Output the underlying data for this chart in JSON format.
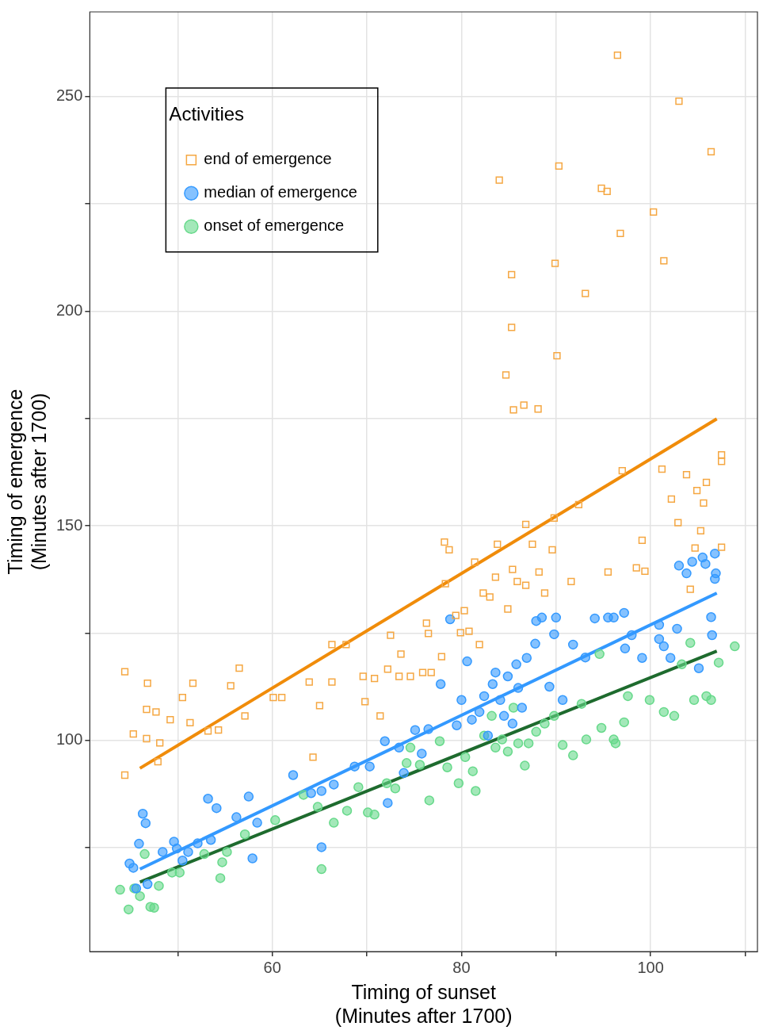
{
  "chart_data": {
    "type": "scatter",
    "xlabel": "Timing of sunset\n(Minutes after 1700)",
    "ylabel": "Timing of emergence\n(Minutes after 1700)",
    "legend_title": "Activities",
    "legend": "top left",
    "grid": true,
    "xlim": [
      40.7,
      111.3
    ],
    "xticks": [
      {
        "value": 50,
        "label": null
      },
      60,
      {
        "value": 70,
        "label": null
      },
      80,
      {
        "value": 90,
        "label": null
      },
      100,
      {
        "value": 110,
        "label": null
      }
    ],
    "ylim": [
      50.8,
      269.7
    ],
    "yticks": [
      {
        "value": 75,
        "label": null
      },
      100,
      {
        "value": 125,
        "label": null
      },
      150,
      {
        "value": 175,
        "label": null
      },
      200,
      {
        "value": 225,
        "label": null
      },
      250
    ],
    "series": [
      {
        "type": "scatter",
        "name": "end of emergence",
        "color": "#f5a742",
        "marker": "square",
        "x": [
          44.4,
          44.4,
          45.3,
          46.8,
          46.7,
          46.7,
          47.7,
          47.9,
          48.1,
          49.2,
          50.5,
          51.3,
          51.6,
          53.2,
          54.3,
          55.6,
          56.5,
          57.1,
          60.1,
          61.0,
          63.9,
          64.3,
          65.0,
          66.3,
          66.3,
          67.8,
          69.8,
          69.6,
          70.8,
          71.4,
          72.2,
          72.5,
          73.4,
          73.6,
          74.6,
          75.9,
          76.3,
          76.5,
          76.8,
          77.9,
          78.2,
          78.3,
          78.7,
          79.4,
          79.9,
          80.3,
          80.8,
          81.4,
          81.9,
          82.3,
          83.0,
          83.6,
          83.8,
          84.0,
          84.7,
          84.9,
          85.3,
          85.3,
          85.4,
          85.5,
          85.9,
          86.6,
          86.8,
          86.8,
          87.5,
          88.1,
          88.2,
          88.8,
          89.6,
          89.9,
          90.1,
          90.3,
          89.8,
          91.6,
          92.4,
          93.1,
          94.8,
          95.4,
          95.5,
          96.5,
          96.8,
          97.0,
          98.5,
          99.1,
          99.4,
          100.3,
          101.2,
          101.4,
          102.2,
          102.9,
          103.0,
          103.8,
          104.2,
          104.7,
          104.9,
          105.3,
          105.6,
          105.9,
          106.4,
          107.5,
          107.5,
          107.5
        ],
        "values": [
          116.0,
          91.9,
          101.5,
          113.3,
          107.2,
          100.4,
          106.6,
          95.0,
          99.4,
          104.8,
          110.0,
          104.1,
          113.3,
          102.2,
          102.4,
          112.7,
          116.8,
          105.7,
          110.0,
          110.0,
          113.6,
          96.1,
          108.1,
          113.6,
          122.3,
          122.3,
          109.0,
          114.9,
          114.4,
          105.7,
          116.6,
          124.5,
          114.9,
          120.1,
          114.9,
          115.8,
          127.3,
          124.9,
          115.8,
          119.5,
          146.2,
          136.5,
          144.4,
          129.1,
          125.1,
          130.2,
          125.4,
          141.5,
          122.3,
          134.3,
          133.4,
          138.0,
          145.7,
          230.5,
          185.1,
          130.6,
          208.5,
          196.2,
          139.8,
          177.0,
          137.0,
          178.1,
          150.3,
          136.1,
          145.7,
          177.2,
          139.2,
          134.3,
          144.4,
          211.1,
          189.6,
          233.8,
          151.8,
          137.0,
          154.9,
          204.1,
          228.6,
          227.9,
          139.2,
          259.6,
          218.1,
          162.8,
          140.2,
          146.6,
          139.4,
          223.1,
          163.2,
          211.7,
          156.2,
          150.7,
          248.9,
          161.9,
          135.2,
          144.8,
          158.2,
          148.8,
          155.3,
          160.1,
          237.1,
          145.0,
          165.0,
          166.5
        ]
      },
      {
        "type": "scatter",
        "name": "median of emergence",
        "color": "#3399ff",
        "marker": "circle",
        "x": [
          44.9,
          45.3,
          45.6,
          46.3,
          46.6,
          46.8,
          45.9,
          48.4,
          49.6,
          49.9,
          50.5,
          51.1,
          52.1,
          53.2,
          53.5,
          54.1,
          56.2,
          57.5,
          57.9,
          58.4,
          62.2,
          64.1,
          65.2,
          65.2,
          66.5,
          68.7,
          70.3,
          72.2,
          71.9,
          73.4,
          73.9,
          75.1,
          75.8,
          76.5,
          77.8,
          78.8,
          79.5,
          80.0,
          80.6,
          81.1,
          81.9,
          82.4,
          82.8,
          83.3,
          83.6,
          84.1,
          84.5,
          84.9,
          85.4,
          85.8,
          86.0,
          86.4,
          86.9,
          87.8,
          87.9,
          88.5,
          89.3,
          89.8,
          90.0,
          90.7,
          91.8,
          93.1,
          94.1,
          95.5,
          96.1,
          97.2,
          97.3,
          98.0,
          99.1,
          100.9,
          100.9,
          101.4,
          102.1,
          102.8,
          103.0,
          103.8,
          104.4,
          105.1,
          105.5,
          105.8,
          106.4,
          106.5,
          106.8,
          106.8,
          106.9
        ],
        "values": [
          71.3,
          70.3,
          65.5,
          82.9,
          80.7,
          66.5,
          75.9,
          74.0,
          76.4,
          74.8,
          72.0,
          74.0,
          76.0,
          86.4,
          76.8,
          84.2,
          82.1,
          86.9,
          72.5,
          80.8,
          91.9,
          87.7,
          75.1,
          88.2,
          89.7,
          93.9,
          93.9,
          85.4,
          99.8,
          98.3,
          92.4,
          102.4,
          96.9,
          102.6,
          113.1,
          128.2,
          103.5,
          109.4,
          118.4,
          104.8,
          106.6,
          110.3,
          101.1,
          113.1,
          115.8,
          109.4,
          105.7,
          114.9,
          103.9,
          117.7,
          112.2,
          107.6,
          119.2,
          122.5,
          127.8,
          128.6,
          112.5,
          124.7,
          128.6,
          109.4,
          122.3,
          119.3,
          128.4,
          128.6,
          128.6,
          129.7,
          121.4,
          124.5,
          119.2,
          126.9,
          123.6,
          121.9,
          119.2,
          126.0,
          140.7,
          138.9,
          141.6,
          116.8,
          142.6,
          141.1,
          128.7,
          124.5,
          143.5,
          137.6,
          138.9
        ]
      },
      {
        "type": "scatter",
        "name": "onset of emergence",
        "color": "#66d98a",
        "marker": "circle",
        "x": [
          43.9,
          44.8,
          45.4,
          46.0,
          46.5,
          47.1,
          47.5,
          48.0,
          49.4,
          50.2,
          52.8,
          54.5,
          54.7,
          55.2,
          57.1,
          60.3,
          63.3,
          64.8,
          65.2,
          66.5,
          67.9,
          69.1,
          70.1,
          70.8,
          72.1,
          73.0,
          74.2,
          74.6,
          75.6,
          76.6,
          77.7,
          78.5,
          79.7,
          80.4,
          81.5,
          81.2,
          82.4,
          83.2,
          83.6,
          84.3,
          84.9,
          85.5,
          86.0,
          86.7,
          87.1,
          87.9,
          88.8,
          89.8,
          90.7,
          91.8,
          92.7,
          93.2,
          94.6,
          94.8,
          96.1,
          96.3,
          97.2,
          97.6,
          99.9,
          101.4,
          102.5,
          103.3,
          104.2,
          104.6,
          105.9,
          106.4,
          107.2,
          108.9
        ],
        "values": [
          65.2,
          60.6,
          65.5,
          63.7,
          73.5,
          61.2,
          61.0,
          66.1,
          69.2,
          69.2,
          73.5,
          67.9,
          71.6,
          74.0,
          78.1,
          81.4,
          87.3,
          84.5,
          70.0,
          80.8,
          83.6,
          89.1,
          83.2,
          82.7,
          90.0,
          88.8,
          94.7,
          98.3,
          94.3,
          86.0,
          99.8,
          93.7,
          90.0,
          96.1,
          88.2,
          92.8,
          101.1,
          105.7,
          98.3,
          100.2,
          97.4,
          107.6,
          99.3,
          94.1,
          99.3,
          102.0,
          103.9,
          105.7,
          98.9,
          96.5,
          108.5,
          100.2,
          120.1,
          102.9,
          100.2,
          99.3,
          104.2,
          110.3,
          109.4,
          106.6,
          105.7,
          117.7,
          122.7,
          109.4,
          110.3,
          109.4,
          118.1,
          121.9
        ]
      },
      {
        "type": "line",
        "color": "#f08c0a",
        "marker": "none",
        "x": [
          46,
          107
        ],
        "values": [
          93.5,
          174.9
        ]
      },
      {
        "type": "line",
        "color": "#3399ff",
        "marker": "none",
        "x": [
          46,
          107
        ],
        "values": [
          70,
          134.3
        ]
      },
      {
        "type": "line",
        "color": "#1e6b2e",
        "marker": "none",
        "x": [
          46,
          107
        ],
        "values": [
          67,
          120.8
        ]
      }
    ]
  }
}
